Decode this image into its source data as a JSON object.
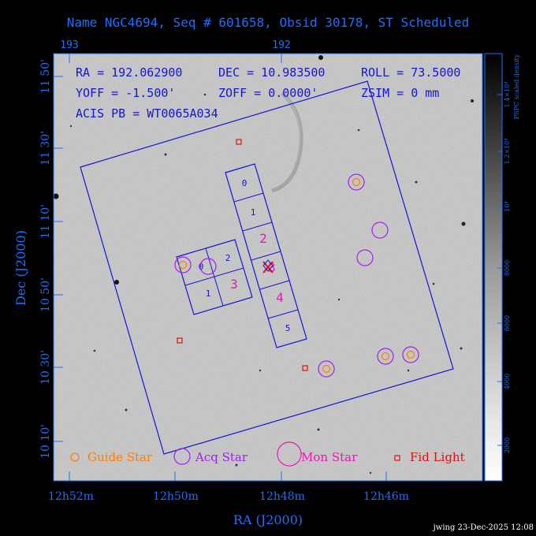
{
  "title": "Name NGC4694, Seq # 601658, Obsid 30178, ST Scheduled",
  "top_ra_ticks": [
    "193",
    "192"
  ],
  "info": {
    "ra": "RA = 192.062900",
    "dec": "DEC = 10.983500",
    "roll": "ROLL = 73.5000",
    "yoff": "YOFF = -1.500'",
    "zoff": "ZOFF = 0.0000'",
    "zsim": "ZSIM = 0 mm",
    "acis": "ACIS PB = WT0065A034"
  },
  "axes": {
    "x_label": "RA (J2000)",
    "y_label": "Dec (J2000)",
    "x_ticks": [
      "12h52m",
      "12h50m",
      "12h48m",
      "12h46m"
    ],
    "y_ticks": [
      "11 50'",
      "11 30'",
      "11 10'",
      "10 50'",
      "10 30'",
      "10 10'"
    ]
  },
  "chips": {
    "s_chips": [
      "0",
      "1",
      "2",
      "3",
      "4",
      "5"
    ],
    "i_chips": [
      "0",
      "2",
      "1",
      "3"
    ]
  },
  "legend": {
    "guide": "Guide Star",
    "acq": "Acq Star",
    "mon": "Mon Star",
    "fid": "Fid Light"
  },
  "colorbar": {
    "title": "PSPC scaled density",
    "ticks": [
      "2000",
      "4000",
      "6000",
      "8000",
      "10⁴",
      "1.2×10⁴",
      "1.4×10⁴"
    ]
  },
  "colors": {
    "frame": "#1e6fff",
    "field": "#1515d6",
    "guide": "#ff7f00",
    "acq": "#a020f0",
    "mon": "#e818b4",
    "fid": "#e01010"
  },
  "footer": "jwing 23-Dec-2025 12:08"
}
